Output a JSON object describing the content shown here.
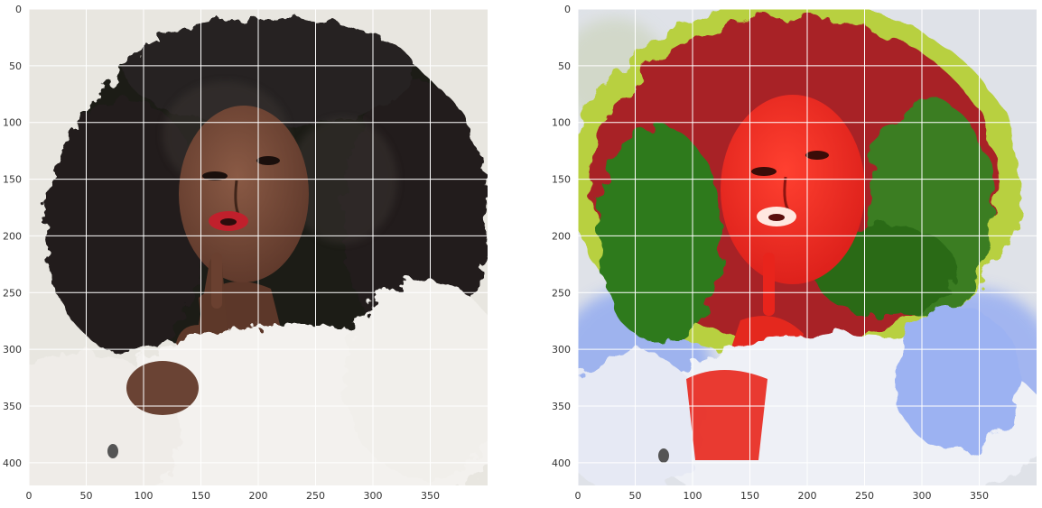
{
  "figure": {
    "panels": [
      {
        "name": "original-photo",
        "description_tag": "original-portrait-photo",
        "x_ticks": [
          "0",
          "50",
          "100",
          "150",
          "200",
          "250",
          "300",
          "350"
        ],
        "y_ticks": [
          "0",
          "50",
          "100",
          "150",
          "200",
          "250",
          "300",
          "350",
          "400"
        ],
        "x_tick_values": [
          0,
          50,
          100,
          150,
          200,
          250,
          300,
          350
        ],
        "y_tick_values": [
          0,
          50,
          100,
          150,
          200,
          250,
          300,
          350,
          400
        ],
        "xlim": [
          0,
          400
        ],
        "ylim": [
          420,
          0
        ]
      },
      {
        "name": "stylized-photo",
        "description_tag": "style-transfer-painting",
        "x_ticks": [
          "0",
          "50",
          "100",
          "150",
          "200",
          "250",
          "300",
          "350"
        ],
        "y_ticks": [
          "0",
          "50",
          "100",
          "150",
          "200",
          "250",
          "300",
          "350",
          "400"
        ],
        "x_tick_values": [
          0,
          50,
          100,
          150,
          200,
          250,
          300,
          350
        ],
        "y_tick_values": [
          0,
          50,
          100,
          150,
          200,
          250,
          300,
          350,
          400
        ],
        "xlim": [
          0,
          400
        ],
        "ylim": [
          420,
          0
        ]
      }
    ],
    "grid": true,
    "colors": {
      "grid": "#ffffff",
      "background_photo": "#e6e4de",
      "hair": "#1c1a19",
      "skin": "#6e4536",
      "lips": "#c0202c",
      "fur": "#f3f1ee",
      "stylized_bg": "#dfe2e8",
      "stylized_hair_red": "#a82226",
      "stylized_hair_green": "#2f7a1c",
      "stylized_yellow": "#c8d84a",
      "stylized_face": "#f02a1e",
      "stylized_blue": "#8ea8f0",
      "stylized_fur": "#eef0f6"
    }
  }
}
